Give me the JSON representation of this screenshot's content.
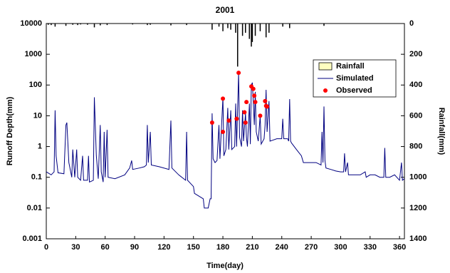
{
  "chart_data": {
    "type": "line",
    "title": "2001",
    "x_label": "Time(day)",
    "y_label": "Runoff Depth(mm)",
    "y2_label": "Rainfall(mm)",
    "xlim": [
      0,
      365
    ],
    "xticks": [
      0,
      30,
      60,
      90,
      120,
      150,
      180,
      210,
      240,
      270,
      300,
      330,
      360
    ],
    "ylim": [
      0.001,
      10000
    ],
    "yticks": [
      0.001,
      0.01,
      0.1,
      1,
      10,
      100,
      1000,
      10000
    ],
    "log_y": true,
    "y2lim": [
      0,
      1400
    ],
    "y2ticks": [
      0,
      200,
      400,
      600,
      800,
      1000,
      1200,
      1400
    ],
    "y2_inverted": true,
    "legend": "upper right",
    "series": [
      {
        "name": "Rainfall",
        "type": "bar",
        "axis": "y2",
        "color": "#000000",
        "legend_color": "#ffffc0",
        "x": [
          2,
          5,
          9,
          20,
          27,
          32,
          35,
          42,
          49,
          55,
          62,
          88,
          103,
          106,
          127,
          143,
          169,
          176,
          180,
          185,
          188,
          193,
          195,
          200,
          203,
          207,
          209,
          210,
          213,
          218,
          224,
          227,
          241,
          248,
          283
        ],
        "values": [
          8,
          10,
          20,
          15,
          8,
          10,
          6,
          8,
          25,
          12,
          10,
          6,
          10,
          8,
          12,
          10,
          40,
          20,
          50,
          30,
          40,
          60,
          280,
          80,
          60,
          100,
          150,
          120,
          80,
          50,
          90,
          60,
          20,
          30,
          15
        ]
      },
      {
        "name": "Simulated",
        "type": "line",
        "color": "#000080",
        "x": [
          0,
          5,
          8,
          9,
          10,
          12,
          18,
          20,
          21,
          23,
          26,
          27,
          29,
          31,
          32,
          35,
          37,
          38,
          42,
          43,
          44,
          48,
          49,
          51,
          53,
          55,
          56,
          58,
          59,
          60,
          62,
          63,
          70,
          80,
          85,
          87,
          88,
          95,
          100,
          102,
          103,
          104,
          106,
          107,
          115,
          125,
          127,
          128,
          135,
          142,
          143,
          144,
          150,
          151,
          155,
          160,
          161,
          165,
          167,
          168,
          169,
          170,
          172,
          174,
          176,
          177,
          180,
          181,
          183,
          185,
          186,
          188,
          189,
          192,
          193,
          194,
          196,
          197,
          199,
          200,
          201,
          203,
          204,
          205,
          207,
          208,
          209,
          210,
          212,
          213,
          214,
          216,
          218,
          219,
          222,
          223,
          224,
          225,
          227,
          228,
          235,
          240,
          241,
          242,
          246,
          247,
          248,
          249,
          250,
          255,
          260,
          262,
          270,
          275,
          280,
          281,
          282,
          283,
          284,
          285,
          290,
          295,
          300,
          303,
          304,
          305,
          307,
          308,
          315,
          320,
          325,
          326,
          330,
          335,
          340,
          344,
          345,
          346,
          350,
          355,
          360,
          362,
          363,
          365
        ],
        "values": [
          0.15,
          0.12,
          0.15,
          15,
          0.5,
          0.14,
          0.13,
          5,
          6,
          0.3,
          0.1,
          0.8,
          0.1,
          0.8,
          0.1,
          0.08,
          0.5,
          0.08,
          0.08,
          0.5,
          0.07,
          0.08,
          40,
          0.5,
          0.09,
          5,
          0.15,
          0.07,
          3,
          0.1,
          3.5,
          0.1,
          0.09,
          0.12,
          0.2,
          0.35,
          0.18,
          0.2,
          0.22,
          0.25,
          5,
          0.3,
          3,
          0.25,
          0.22,
          0.18,
          7,
          0.2,
          0.12,
          0.08,
          3,
          0.08,
          0.05,
          0.03,
          0.025,
          0.02,
          0.01,
          0.01,
          0.02,
          0.02,
          12,
          0.4,
          0.3,
          0.35,
          5,
          0.4,
          40,
          0.5,
          0.8,
          18,
          0.8,
          15,
          0.8,
          1,
          25,
          1,
          250,
          2,
          1,
          15,
          1.5,
          12,
          2,
          1,
          25,
          1.2,
          100,
          120,
          5,
          60,
          3,
          1.5,
          10,
          1.2,
          1.8,
          5,
          70,
          3,
          30,
          1.5,
          1.8,
          1.8,
          8,
          1.8,
          1.8,
          1.5,
          35,
          1.5,
          1.3,
          0.8,
          0.5,
          0.3,
          0.3,
          0.3,
          0.25,
          3,
          0.3,
          20,
          0.35,
          0.2,
          0.18,
          0.16,
          0.15,
          0.15,
          0.6,
          0.15,
          0.3,
          0.12,
          0.12,
          0.12,
          0.15,
          0.1,
          0.12,
          0.12,
          0.1,
          0.1,
          0.9,
          0.1,
          0.1,
          0.12,
          0.08,
          0.3,
          0.08,
          0.09
        ]
      },
      {
        "name": "Observed",
        "type": "scatter",
        "color": "#ff0000",
        "x": [
          169,
          180,
          180,
          186,
          194,
          196,
          202,
          203,
          204,
          209,
          211,
          212,
          213,
          218,
          223,
          224,
          225
        ],
        "values": [
          6,
          3,
          36,
          7,
          8,
          250,
          13,
          6,
          28,
          90,
          75,
          45,
          28,
          10,
          30,
          21,
          20
        ]
      }
    ]
  }
}
